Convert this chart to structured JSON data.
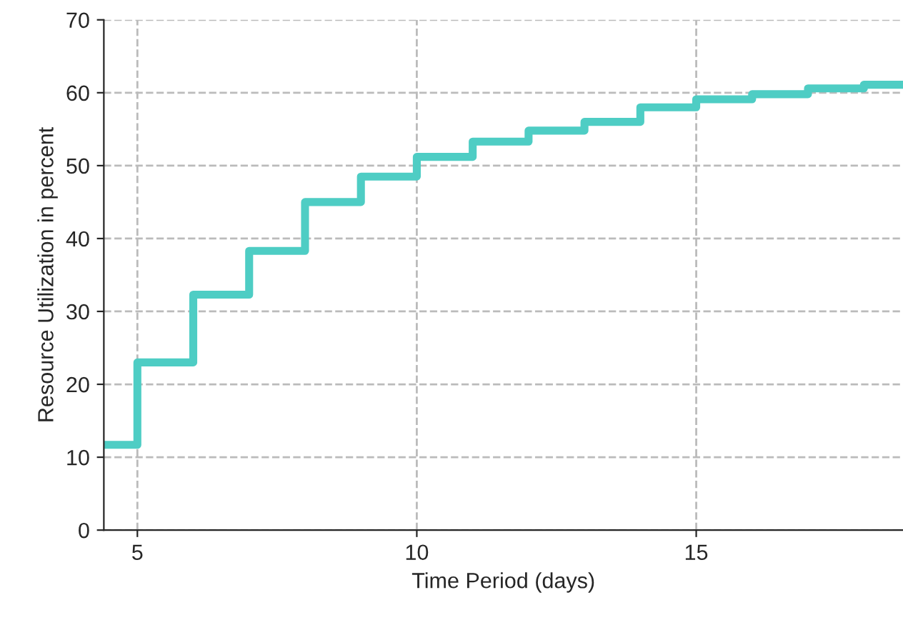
{
  "chart_data": {
    "type": "step",
    "xlabel": "Time Period (days)",
    "ylabel": "Resource Utilization in percent",
    "x": [
      4.4,
      5,
      6,
      7,
      8,
      9,
      10,
      11,
      12,
      13,
      14,
      15,
      16,
      17,
      18,
      18.7
    ],
    "series": [
      {
        "color": "#4ecdc4",
        "values": [
          11.7,
          23,
          32.3,
          38.3,
          45,
          48.5,
          51.2,
          53.3,
          54.8,
          56,
          58,
          59.1,
          59.8,
          60.6,
          61.1,
          61.1
        ]
      }
    ],
    "xlim": [
      4.4,
      18.7
    ],
    "xticks": [
      5,
      10,
      15
    ],
    "ylim": [
      0,
      70
    ],
    "yticks": [
      0,
      10,
      20,
      30,
      40,
      50,
      60,
      70
    ],
    "grid": true,
    "line_style": "solid"
  }
}
